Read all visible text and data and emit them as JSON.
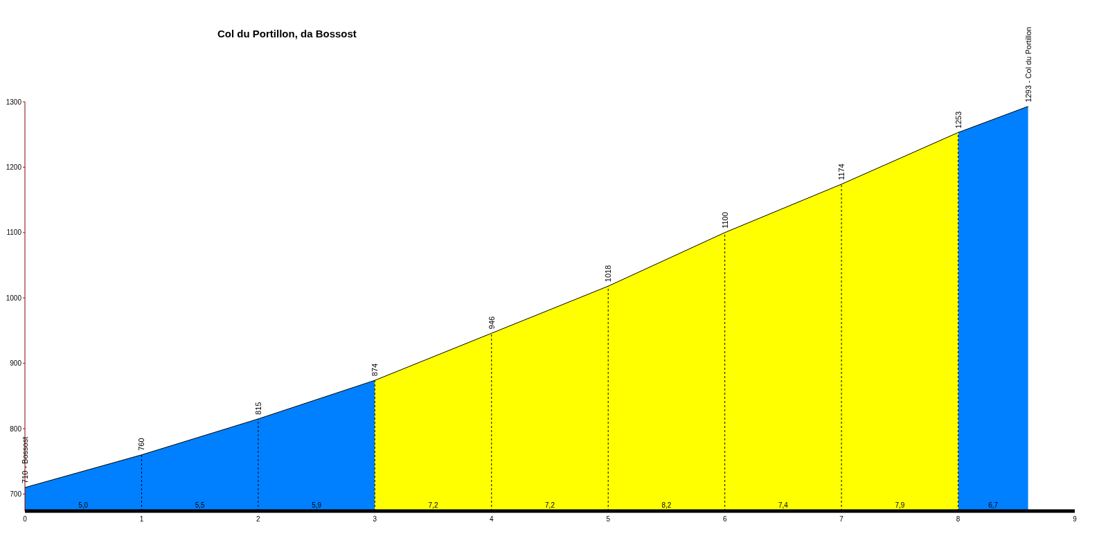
{
  "chart_data": {
    "type": "area",
    "title": "Col du Portillon, da Bossost",
    "x": [
      0,
      1,
      2,
      3,
      4,
      5,
      6,
      7,
      8,
      8.6
    ],
    "values": [
      710,
      760,
      815,
      874,
      946,
      1018,
      1100,
      1174,
      1253,
      1293
    ],
    "value_labels": [
      "710 - Bossost",
      "760",
      "815",
      "874",
      "946",
      "1018",
      "1100",
      "1174",
      "1253",
      "1293 - Col du Portillon"
    ],
    "colors": [
      "#0080ff",
      "#0080ff",
      "#0080ff",
      "#0080ff",
      "#ffff00",
      "#ffff00",
      "#ffff00",
      "#ffff00",
      "#ffff00",
      "#0080ff"
    ],
    "xlim": [
      0,
      9
    ],
    "xticks": [
      0,
      1,
      2,
      3,
      4,
      5,
      6,
      7,
      8,
      9
    ],
    "ylim": [
      674,
      1300
    ],
    "yticks": [
      700,
      800,
      900,
      1000,
      1100,
      1200,
      1300
    ],
    "grid": "x",
    "legend": false,
    "line_style": "solid",
    "marker": "none",
    "annotations": [
      "5,0",
      "5,5",
      "5,9",
      "7,2",
      "7,2",
      "8,2",
      "7,4",
      "7,9",
      "6,7"
    ]
  }
}
